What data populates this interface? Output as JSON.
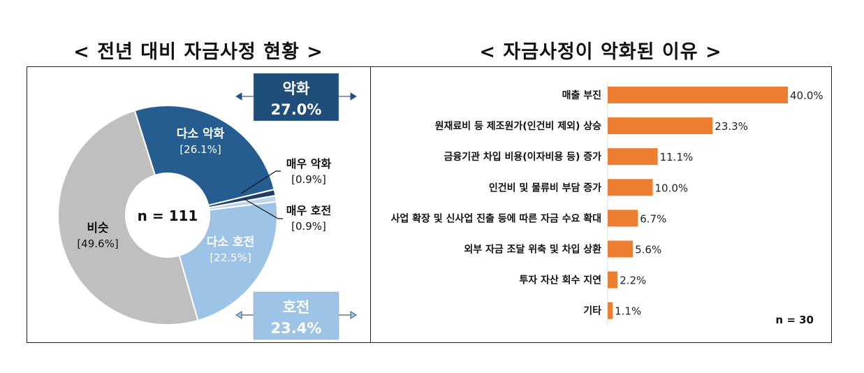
{
  "chart_data": [
    {
      "type": "pie",
      "title": "< 전년 대비 자금사정 현황 >",
      "center_label": "n = 111",
      "slices": [
        {
          "label": "다소 악화",
          "value": 26.1,
          "value_label": "[26.1%]",
          "color": "#255d91",
          "text_color": "#ffffff"
        },
        {
          "label": "매우 악화",
          "value": 0.9,
          "value_label": "[0.9%]",
          "color": "#1b3f66",
          "text_color": "#111111"
        },
        {
          "label": "매우 호전",
          "value": 0.9,
          "value_label": "[0.9%]",
          "color": "#bcd5ee",
          "text_color": "#111111"
        },
        {
          "label": "다소 호전",
          "value": 22.5,
          "value_label": "[22.5%]",
          "color": "#9dc3e6",
          "text_color": "#ffffff"
        },
        {
          "label": "비슷",
          "value": 49.6,
          "value_label": "[49.6%]",
          "color": "#bfbfbf",
          "text_color": "#111111"
        }
      ],
      "groups": [
        {
          "label": "악화",
          "value_label": "27.0%",
          "color": "#1f4e79",
          "text_color": "#ffffff"
        },
        {
          "label": "호전",
          "value_label": "23.4%",
          "color": "#9dc3e6",
          "text_color": "#ffffff"
        }
      ]
    },
    {
      "type": "bar",
      "orientation": "horizontal",
      "title": "< 자금사정이 악화된 이유 >",
      "note": "n = 30",
      "bar_color": "#ed7d31",
      "categories": [
        "매출 부진",
        "원재료비 등 제조원가(인건비 제외) 상승",
        "금융기관 차입 비용(이자비용 등) 증가",
        "인건비 및 물류비 부담 증가",
        "사업 확장 및 신사업 진출 등에 따른 자금 수요 확대",
        "외부 자금 조달 위축 및 차입 상환",
        "투자 자산 회수 지연",
        "기타"
      ],
      "values": [
        40.0,
        23.3,
        11.1,
        10.0,
        6.7,
        5.6,
        2.2,
        1.1
      ],
      "value_labels": [
        "40.0%",
        "23.3%",
        "11.1%",
        "10.0%",
        "6.7%",
        "5.6%",
        "2.2%",
        "1.1%"
      ],
      "xlim": [
        0,
        40
      ]
    }
  ]
}
